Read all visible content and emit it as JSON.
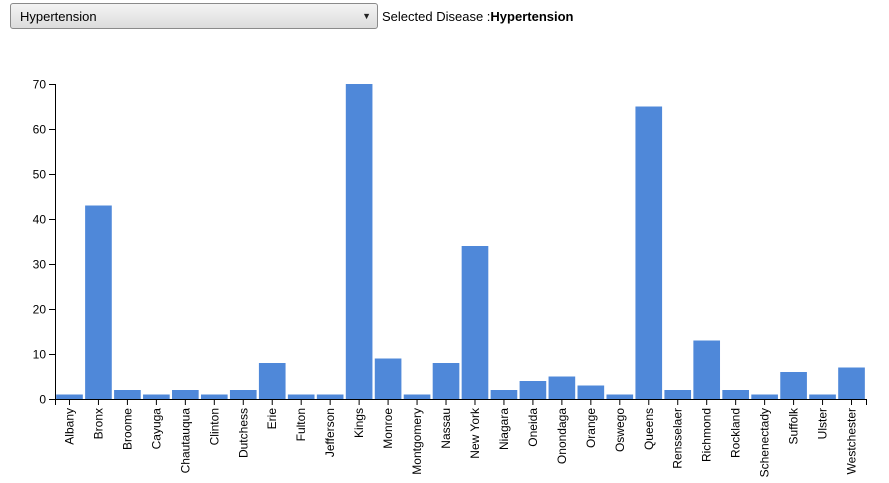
{
  "control": {
    "selected_option": "Hypertension",
    "status_prefix": "Selected Disease :",
    "status_value": "Hypertension"
  },
  "colors": {
    "bar": "#4f88d9",
    "axis": "#000000"
  },
  "chart_data": {
    "type": "bar",
    "categories": [
      "Albany",
      "Bronx",
      "Broome",
      "Cayuga",
      "Chautauqua",
      "Clinton",
      "Dutchess",
      "Erie",
      "Fulton",
      "Jefferson",
      "Kings",
      "Monroe",
      "Montgomery",
      "Nassau",
      "New York",
      "Niagara",
      "Oneida",
      "Onondaga",
      "Orange",
      "Oswego",
      "Queens",
      "Rensselaer",
      "Richmond",
      "Rockland",
      "Schenectady",
      "Suffolk",
      "Ulster",
      "Westchester"
    ],
    "values": [
      1,
      43,
      2,
      1,
      2,
      1,
      2,
      8,
      1,
      1,
      70,
      9,
      1,
      8,
      34,
      2,
      4,
      5,
      3,
      1,
      65,
      2,
      13,
      2,
      1,
      6,
      1,
      7
    ],
    "ylim": [
      0,
      70
    ],
    "yticks": [
      0,
      10,
      20,
      30,
      40,
      50,
      60,
      70
    ],
    "grid": false
  }
}
